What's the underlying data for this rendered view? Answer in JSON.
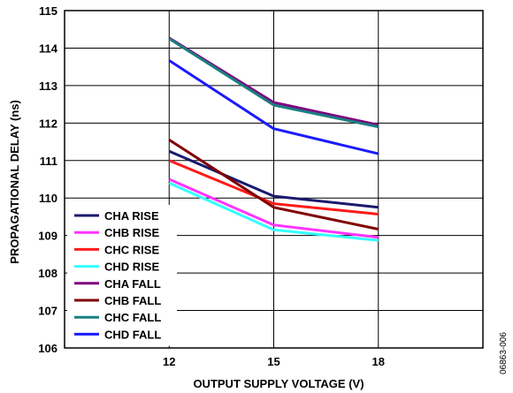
{
  "chart_data": {
    "type": "line",
    "xlabel": "OUTPUT SUPPLY VOLTAGE (V)",
    "ylabel": "PROPAGATIONAL DELAY (ns)",
    "x": [
      12,
      15,
      18
    ],
    "xticks": [
      "12",
      "15",
      "18"
    ],
    "xlim": [
      9,
      21
    ],
    "ylim": [
      106,
      115
    ],
    "yticks": [
      "106",
      "107",
      "108",
      "109",
      "110",
      "111",
      "112",
      "113",
      "114",
      "115"
    ],
    "grid": true,
    "legend_position": "bottom-left",
    "series": [
      {
        "name": "CHA RISE",
        "color": "#1a1a6e",
        "values": [
          111.25,
          110.05,
          109.75
        ]
      },
      {
        "name": "CHB RISE",
        "color": "#ff33ff",
        "values": [
          110.5,
          109.28,
          108.95
        ]
      },
      {
        "name": "CHC RISE",
        "color": "#ff1a1a",
        "values": [
          111.0,
          109.85,
          109.57
        ]
      },
      {
        "name": "CHD RISE",
        "color": "#33ffff",
        "values": [
          110.4,
          109.15,
          108.87
        ]
      },
      {
        "name": "CHA FALL",
        "color": "#800080",
        "values": [
          114.27,
          112.55,
          111.95
        ]
      },
      {
        "name": "CHB FALL",
        "color": "#800000",
        "values": [
          111.55,
          109.75,
          109.17
        ]
      },
      {
        "name": "CHC FALL",
        "color": "#1a8080",
        "values": [
          114.25,
          112.48,
          111.9
        ]
      },
      {
        "name": "CHD FALL",
        "color": "#1a1aff",
        "values": [
          113.67,
          111.85,
          111.18
        ]
      }
    ]
  },
  "footnote": "06863-006"
}
